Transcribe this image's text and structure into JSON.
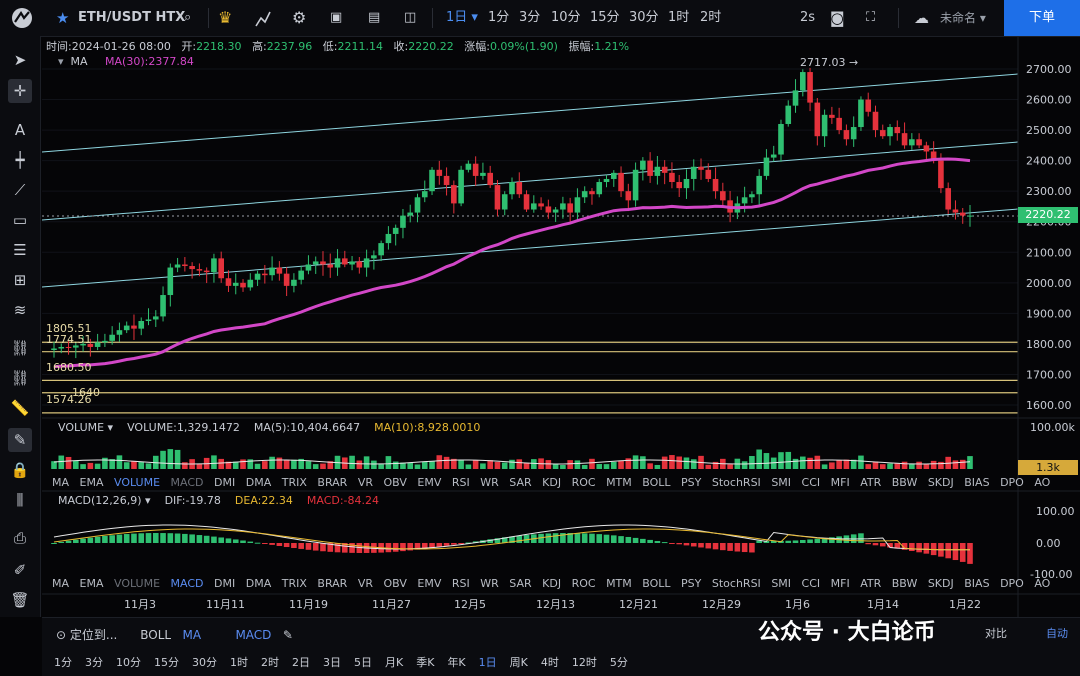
{
  "topbar": {
    "symbol": "ETH/USDT HTX",
    "intervals": [
      "1日",
      "1分",
      "3分",
      "10分",
      "15分",
      "30分",
      "1时",
      "2时"
    ],
    "active_interval": "1日",
    "refresh": "2s",
    "layout_name": "未命名",
    "order_button": "下单"
  },
  "info": {
    "time_label": "时间:",
    "time": "2024-01-26 08:00",
    "open_label": "开:",
    "open": "2218.30",
    "high_label": "高:",
    "high": "2237.96",
    "low_label": "低:",
    "low": "2211.14",
    "close_label": "收:",
    "close": "2220.22",
    "change_label": "涨幅:",
    "change": "0.09%(1.90)",
    "amp_label": "振幅:",
    "amp": "1.21%"
  },
  "ma": {
    "label": "MA",
    "ma30": "MA(30):2377.84"
  },
  "price_axis": [
    "2700.00",
    "2600.00",
    "2500.00",
    "2400.00",
    "2300.00",
    "2200.00",
    "2100.00",
    "2000.00",
    "1900.00",
    "1800.00",
    "1700.00",
    "1600.00"
  ],
  "current_price": "2220.22",
  "annotations": {
    "high_mark": "2717.03",
    "levels": [
      "1805.51",
      "1774.51",
      "1680.50",
      "1640",
      "1574.26"
    ]
  },
  "volume": {
    "label": "VOLUME",
    "value": "VOLUME:1,329.1472",
    "ma5": "MA(5):10,404.6647",
    "ma10": "MA(10):8,928.0010",
    "axis_top": "100.00k",
    "tag": "1.3k"
  },
  "indicator_list": [
    "MA",
    "EMA",
    "VOLUME",
    "MACD",
    "DMI",
    "DMA",
    "TRIX",
    "BRAR",
    "VR",
    "OBV",
    "EMV",
    "RSI",
    "WR",
    "SAR",
    "KDJ",
    "ROC",
    "MTM",
    "BOLL",
    "PSY",
    "StochRSI",
    "SMI",
    "CCI",
    "MFI",
    "ATR",
    "BBW",
    "SKDJ",
    "BIAS",
    "DPO",
    "AO"
  ],
  "macd": {
    "label": "MACD(12,26,9)",
    "dif": "DIF:-19.78",
    "dea": "DEA:22.34",
    "macd": "MACD:-84.24",
    "axis": [
      "100.00",
      "0.00",
      "-100.00"
    ]
  },
  "x_axis": [
    "11月3",
    "11月11",
    "11月19",
    "11月27",
    "12月5",
    "12月13",
    "12月21",
    "12月29",
    "1月6",
    "1月14",
    "1月22"
  ],
  "bottom": {
    "locate": "定位到...",
    "boll": "BOLL",
    "ma": "MA",
    "macd": "MACD",
    "intervals": [
      "1分",
      "3分",
      "10分",
      "15分",
      "30分",
      "1时",
      "2时",
      "2日",
      "3日",
      "5日",
      "月K",
      "季K",
      "年K",
      "1日",
      "周K",
      "4时",
      "12时",
      "5分"
    ],
    "active": "1日",
    "compare": "对比",
    "auto": "自动"
  },
  "watermark": "公众号 · 大白论币",
  "colors": {
    "up": "#2fbf71",
    "down": "#e5323c",
    "ma30": "#d247c7",
    "accent": "#1e6fe8",
    "level": "#d6c27a",
    "channel": "#8fd6e0"
  },
  "chart_data": {
    "type": "candlestick",
    "title": "ETH/USDT HTX",
    "x_dates": [
      "2023-10-27",
      "2024-01-26"
    ],
    "ylim": [
      1560,
      2760
    ],
    "closes": [
      1785,
      1790,
      1788,
      1795,
      1800,
      1790,
      1805,
      1810,
      1830,
      1845,
      1860,
      1850,
      1875,
      1880,
      1890,
      1960,
      2050,
      2060,
      2055,
      2045,
      2040,
      2035,
      2080,
      2015,
      1990,
      2000,
      1985,
      2010,
      2030,
      2025,
      2050,
      2030,
      1990,
      2010,
      2040,
      2060,
      2070,
      2060,
      2050,
      2080,
      2060,
      2070,
      2050,
      2080,
      2090,
      2130,
      2160,
      2180,
      2220,
      2230,
      2280,
      2300,
      2370,
      2350,
      2320,
      2260,
      2370,
      2390,
      2350,
      2360,
      2320,
      2240,
      2290,
      2330,
      2290,
      2240,
      2260,
      2250,
      2230,
      2240,
      2260,
      2230,
      2280,
      2300,
      2290,
      2330,
      2340,
      2360,
      2300,
      2270,
      2370,
      2400,
      2350,
      2380,
      2360,
      2330,
      2310,
      2340,
      2380,
      2370,
      2340,
      2300,
      2270,
      2230,
      2260,
      2280,
      2290,
      2350,
      2410,
      2420,
      2520,
      2580,
      2630,
      2690,
      2590,
      2480,
      2550,
      2540,
      2500,
      2470,
      2510,
      2600,
      2560,
      2500,
      2480,
      2510,
      2490,
      2450,
      2470,
      2450,
      2430,
      2400,
      2310,
      2240,
      2230,
      2220,
      2220
    ],
    "ma30_line": true,
    "horizontal_levels": [
      1805.51,
      1774.51,
      1680.5,
      1640,
      1574.26
    ],
    "volume_ma5": 10404.6647,
    "volume_ma10": 8928.001,
    "macd_dif": -19.78,
    "macd_dea": 22.34,
    "macd_hist": -84.24
  }
}
